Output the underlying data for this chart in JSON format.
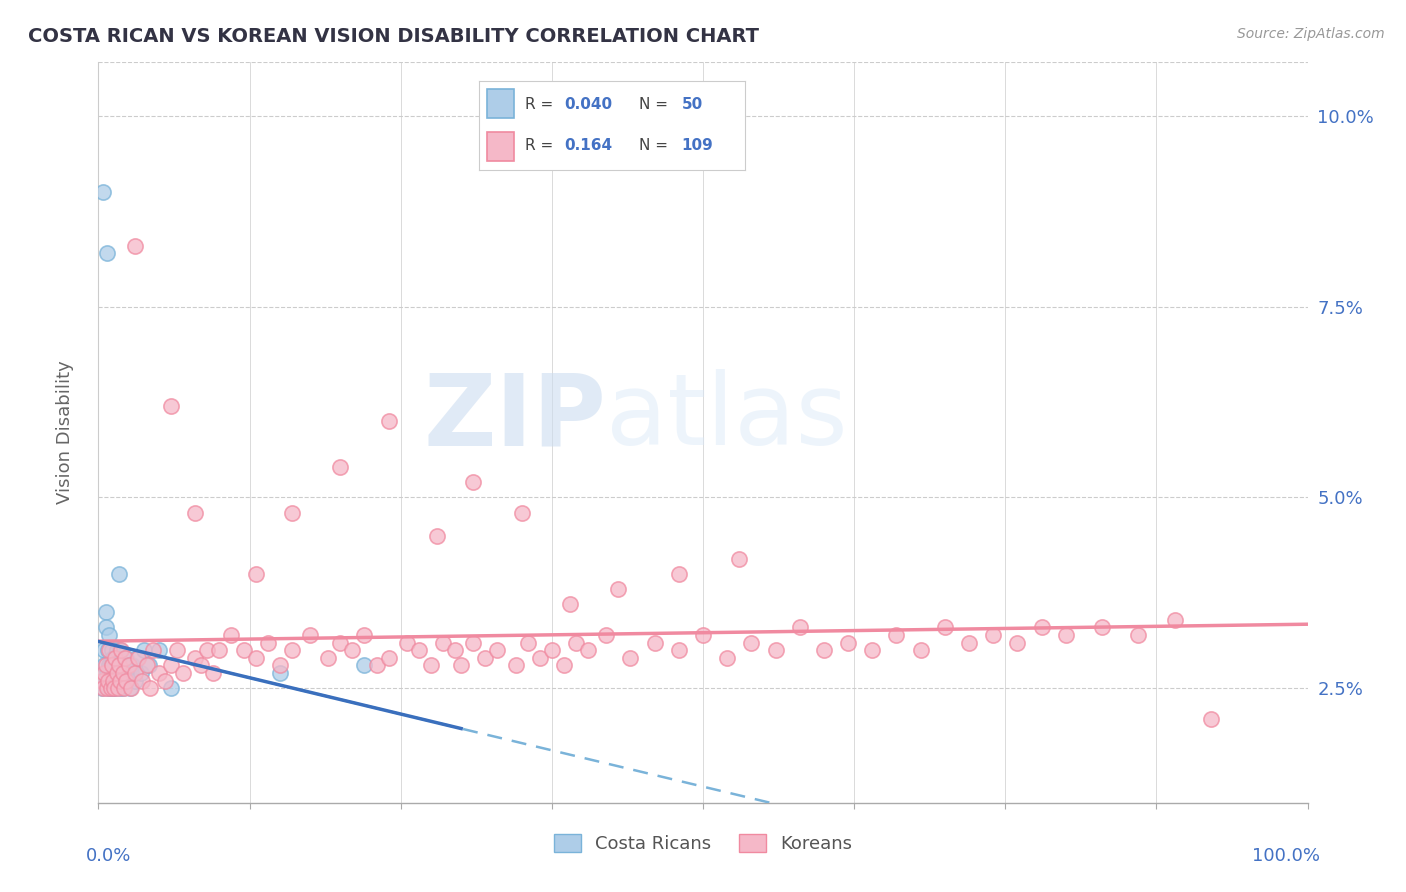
{
  "title": "COSTA RICAN VS KOREAN VISION DISABILITY CORRELATION CHART",
  "source": "Source: ZipAtlas.com",
  "ylabel": "Vision Disability",
  "xmin": 0.0,
  "xmax": 1.0,
  "ymin": 0.01,
  "ymax": 0.107,
  "blue_color": "#7ab3d9",
  "blue_face": "#aecde8",
  "pink_color": "#f08aa0",
  "pink_face": "#f5b8c8",
  "trend_blue": "#3a6fbd",
  "trend_pink": "#e8456a",
  "watermark_color": "#d5e5f5",
  "title_color": "#333344",
  "axis_label_color": "#4472c4",
  "costa_ricans_x": [
    0.004,
    0.007,
    0.003,
    0.004,
    0.005,
    0.005,
    0.006,
    0.006,
    0.007,
    0.007,
    0.008,
    0.008,
    0.009,
    0.009,
    0.01,
    0.01,
    0.01,
    0.011,
    0.011,
    0.012,
    0.012,
    0.013,
    0.013,
    0.014,
    0.014,
    0.015,
    0.016,
    0.016,
    0.017,
    0.018,
    0.018,
    0.019,
    0.02,
    0.021,
    0.022,
    0.023,
    0.024,
    0.025,
    0.026,
    0.027,
    0.028,
    0.03,
    0.032,
    0.035,
    0.038,
    0.042,
    0.05,
    0.06,
    0.15,
    0.22
  ],
  "costa_ricans_y": [
    0.09,
    0.082,
    0.025,
    0.026,
    0.03,
    0.028,
    0.035,
    0.033,
    0.026,
    0.027,
    0.025,
    0.03,
    0.028,
    0.032,
    0.025,
    0.026,
    0.028,
    0.027,
    0.03,
    0.025,
    0.029,
    0.026,
    0.028,
    0.025,
    0.027,
    0.03,
    0.026,
    0.028,
    0.04,
    0.025,
    0.03,
    0.026,
    0.025,
    0.028,
    0.027,
    0.029,
    0.026,
    0.028,
    0.025,
    0.027,
    0.028,
    0.026,
    0.029,
    0.027,
    0.03,
    0.028,
    0.03,
    0.025,
    0.027,
    0.028
  ],
  "koreans_x": [
    0.003,
    0.004,
    0.005,
    0.006,
    0.007,
    0.008,
    0.009,
    0.01,
    0.011,
    0.012,
    0.013,
    0.014,
    0.015,
    0.016,
    0.017,
    0.018,
    0.019,
    0.02,
    0.021,
    0.022,
    0.023,
    0.025,
    0.027,
    0.03,
    0.033,
    0.036,
    0.04,
    0.043,
    0.045,
    0.05,
    0.055,
    0.06,
    0.065,
    0.07,
    0.08,
    0.085,
    0.09,
    0.095,
    0.1,
    0.11,
    0.12,
    0.13,
    0.14,
    0.15,
    0.16,
    0.175,
    0.19,
    0.2,
    0.21,
    0.22,
    0.23,
    0.24,
    0.255,
    0.265,
    0.275,
    0.285,
    0.295,
    0.3,
    0.31,
    0.32,
    0.33,
    0.345,
    0.355,
    0.365,
    0.375,
    0.385,
    0.395,
    0.405,
    0.42,
    0.44,
    0.46,
    0.48,
    0.5,
    0.52,
    0.54,
    0.56,
    0.58,
    0.6,
    0.62,
    0.64,
    0.66,
    0.68,
    0.7,
    0.72,
    0.74,
    0.76,
    0.78,
    0.8,
    0.83,
    0.86,
    0.89,
    0.03,
    0.06,
    0.08,
    0.13,
    0.16,
    0.2,
    0.24,
    0.28,
    0.31,
    0.35,
    0.39,
    0.43,
    0.48,
    0.53,
    0.92
  ],
  "koreans_y": [
    0.026,
    0.025,
    0.027,
    0.028,
    0.025,
    0.026,
    0.03,
    0.025,
    0.028,
    0.026,
    0.025,
    0.029,
    0.027,
    0.025,
    0.028,
    0.026,
    0.03,
    0.027,
    0.025,
    0.029,
    0.026,
    0.028,
    0.025,
    0.027,
    0.029,
    0.026,
    0.028,
    0.025,
    0.03,
    0.027,
    0.026,
    0.028,
    0.03,
    0.027,
    0.029,
    0.028,
    0.03,
    0.027,
    0.03,
    0.032,
    0.03,
    0.029,
    0.031,
    0.028,
    0.03,
    0.032,
    0.029,
    0.031,
    0.03,
    0.032,
    0.028,
    0.029,
    0.031,
    0.03,
    0.028,
    0.031,
    0.03,
    0.028,
    0.031,
    0.029,
    0.03,
    0.028,
    0.031,
    0.029,
    0.03,
    0.028,
    0.031,
    0.03,
    0.032,
    0.029,
    0.031,
    0.03,
    0.032,
    0.029,
    0.031,
    0.03,
    0.033,
    0.03,
    0.031,
    0.03,
    0.032,
    0.03,
    0.033,
    0.031,
    0.032,
    0.031,
    0.033,
    0.032,
    0.033,
    0.032,
    0.034,
    0.083,
    0.062,
    0.048,
    0.04,
    0.048,
    0.054,
    0.06,
    0.045,
    0.052,
    0.048,
    0.036,
    0.038,
    0.04,
    0.042,
    0.021
  ]
}
